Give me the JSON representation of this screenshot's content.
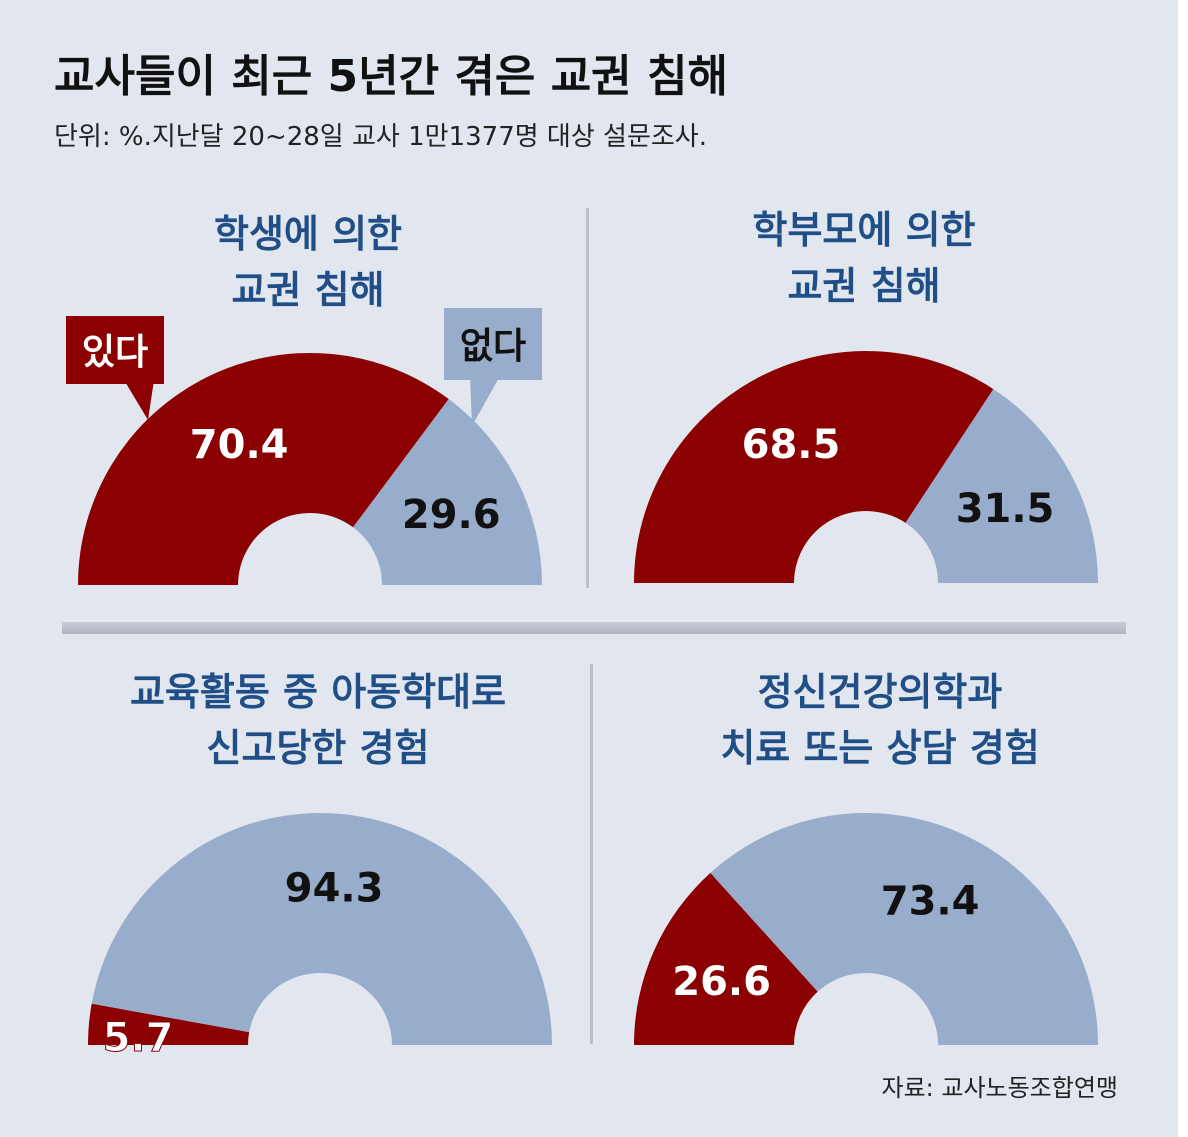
{
  "title": "교사들이 최근 5년간 겪은 교권 침해",
  "subtitle": "단위: %.지난달 20~28일 교사 1만1377명 대상 설문조사.",
  "source": "자료: 교사노동조합연맹",
  "colors": {
    "yes": "#8b0000",
    "no": "#98adcb",
    "title": "#1f4f86",
    "background": "#e2e6ee"
  },
  "legend": {
    "yes": "있다",
    "no": "없다"
  },
  "panels": [
    {
      "title_line1": "학생에 의한",
      "title_line2": "교권 침해"
    },
    {
      "title_line1": "학부모에 의한",
      "title_line2": "교권 침해"
    },
    {
      "title_line1": "교육활동 중 아동학대로",
      "title_line2": "신고당한 경험"
    },
    {
      "title_line1": "정신건강의학과",
      "title_line2": "치료 또는 상담 경험"
    }
  ],
  "chart_data": [
    {
      "type": "pie",
      "title": "학생에 의한 교권 침해",
      "categories": [
        "있다",
        "없다"
      ],
      "values": [
        70.4,
        29.6
      ],
      "labels": [
        "70.4",
        "29.6"
      ]
    },
    {
      "type": "pie",
      "title": "학부모에 의한 교권 침해",
      "categories": [
        "있다",
        "없다"
      ],
      "values": [
        68.5,
        31.5
      ],
      "labels": [
        "68.5",
        "31.5"
      ]
    },
    {
      "type": "pie",
      "title": "교육활동 중 아동학대로 신고당한 경험",
      "categories": [
        "있다",
        "없다"
      ],
      "values": [
        5.7,
        94.3
      ],
      "labels": [
        "5.7",
        "94.3"
      ]
    },
    {
      "type": "pie",
      "title": "정신건강의학과 치료 또는 상담 경험",
      "categories": [
        "있다",
        "없다"
      ],
      "values": [
        26.6,
        73.4
      ],
      "labels": [
        "26.6",
        "73.4"
      ]
    }
  ]
}
